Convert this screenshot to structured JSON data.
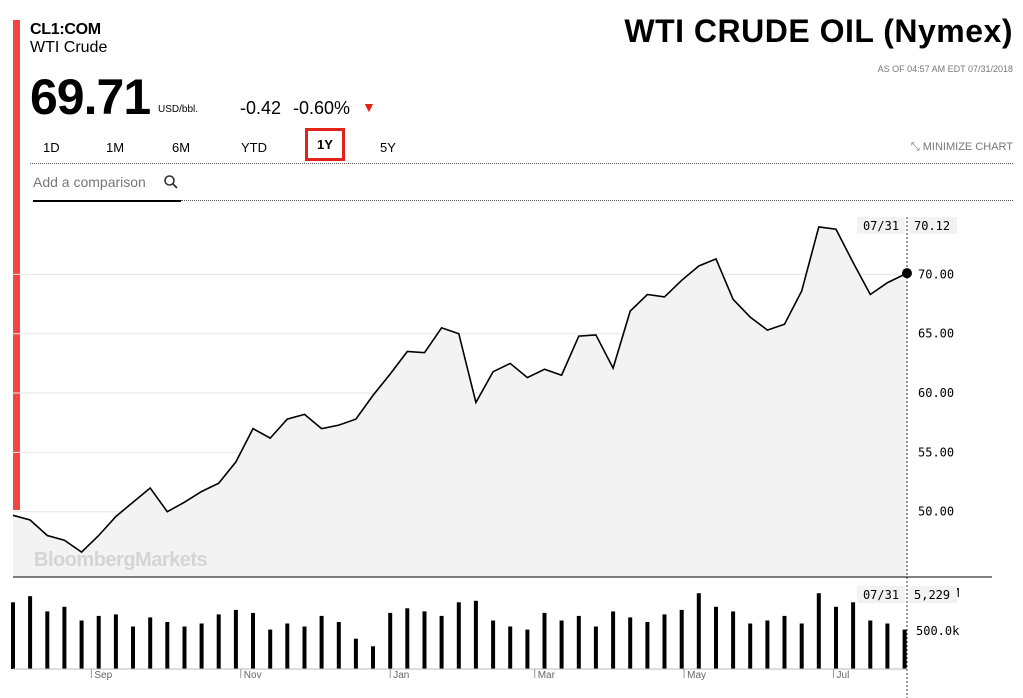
{
  "header": {
    "ticker": "CL1:COM",
    "name": "WTI Crude",
    "headline": "WTI CRUDE OIL (Nymex)",
    "as_of": "AS OF 04:57 AM EDT 07/31/2018",
    "price": "69.71",
    "unit": "USD/bbl.",
    "change": "-0.42",
    "change_pct": "-0.60%",
    "arrow": "▼"
  },
  "ranges": [
    "1D",
    "1M",
    "6M",
    "YTD",
    "1Y",
    "5Y"
  ],
  "active_range": "1Y",
  "minimize_label": "MINIMIZE CHART",
  "compare_placeholder": "Add a comparison",
  "watermark": "BloombergMarkets",
  "colors": {
    "accent": "#f44545",
    "down": "#e2231a",
    "line": "#000000",
    "area": "#f3f3f3",
    "volume": "#000000"
  },
  "chart_data": [
    {
      "type": "area",
      "title": "",
      "y_ticks": [
        "50.00",
        "55.00",
        "60.00",
        "65.00",
        "70.00"
      ],
      "ylim": [
        44.5,
        75
      ],
      "x_ticks": [
        "Sep",
        "Nov",
        "Jan",
        "Mar",
        "May",
        "Jul"
      ],
      "xlim": [
        "2017-07-31",
        "2018-07-31"
      ],
      "crosshair": {
        "date_label": "07/31",
        "value_label": "70.12"
      },
      "series": [
        {
          "x": [
            "2017-07-31",
            "2017-08-07",
            "2017-08-14",
            "2017-08-21",
            "2017-08-28",
            "2017-09-04",
            "2017-09-11",
            "2017-09-18",
            "2017-09-25",
            "2017-10-02",
            "2017-10-09",
            "2017-10-16",
            "2017-10-23",
            "2017-10-30",
            "2017-11-06",
            "2017-11-13",
            "2017-11-20",
            "2017-11-27",
            "2017-12-04",
            "2017-12-11",
            "2017-12-18",
            "2017-12-25",
            "2018-01-01",
            "2018-01-08",
            "2018-01-15",
            "2018-01-22",
            "2018-01-29",
            "2018-02-05",
            "2018-02-12",
            "2018-02-19",
            "2018-02-26",
            "2018-03-05",
            "2018-03-12",
            "2018-03-19",
            "2018-03-26",
            "2018-04-02",
            "2018-04-09",
            "2018-04-16",
            "2018-04-23",
            "2018-04-30",
            "2018-05-07",
            "2018-05-14",
            "2018-05-21",
            "2018-05-28",
            "2018-06-04",
            "2018-06-11",
            "2018-06-18",
            "2018-06-25",
            "2018-07-02",
            "2018-07-09",
            "2018-07-16",
            "2018-07-23",
            "2018-07-31"
          ],
          "values": [
            49.7,
            49.3,
            48.0,
            47.6,
            46.6,
            48.0,
            49.6,
            50.8,
            52.0,
            50.0,
            50.8,
            51.7,
            52.4,
            54.2,
            57.0,
            56.2,
            57.8,
            58.2,
            57.0,
            57.3,
            57.8,
            59.8,
            61.6,
            63.5,
            63.4,
            65.5,
            65.0,
            59.2,
            61.8,
            62.5,
            61.3,
            62.0,
            61.5,
            64.8,
            64.9,
            62.1,
            66.9,
            68.3,
            68.1,
            69.5,
            70.7,
            71.3,
            67.9,
            66.4,
            65.3,
            65.8,
            68.6,
            74.0,
            73.8,
            71.0,
            68.3,
            69.3,
            70.1
          ]
        }
      ]
    },
    {
      "type": "bar",
      "title": "",
      "y_ticks": [
        "500.0k",
        "1.000M"
      ],
      "ylim": [
        0,
        1200000
      ],
      "crosshair": {
        "date_label": "07/31",
        "value_label": "5,229"
      },
      "series": [
        {
          "x": [
            "2017-07-31",
            "2017-08-07",
            "2017-08-14",
            "2017-08-21",
            "2017-08-28",
            "2017-09-04",
            "2017-09-11",
            "2017-09-18",
            "2017-09-25",
            "2017-10-02",
            "2017-10-09",
            "2017-10-16",
            "2017-10-23",
            "2017-10-30",
            "2017-11-06",
            "2017-11-13",
            "2017-11-20",
            "2017-11-27",
            "2017-12-04",
            "2017-12-11",
            "2017-12-18",
            "2017-12-25",
            "2018-01-01",
            "2018-01-08",
            "2018-01-15",
            "2018-01-22",
            "2018-01-29",
            "2018-02-05",
            "2018-02-12",
            "2018-02-19",
            "2018-02-26",
            "2018-03-05",
            "2018-03-12",
            "2018-03-19",
            "2018-03-26",
            "2018-04-02",
            "2018-04-09",
            "2018-04-16",
            "2018-04-23",
            "2018-04-30",
            "2018-05-07",
            "2018-05-14",
            "2018-05-21",
            "2018-05-28",
            "2018-06-04",
            "2018-06-11",
            "2018-06-18",
            "2018-06-25",
            "2018-07-02",
            "2018-07-09",
            "2018-07-16",
            "2018-07-23",
            "2018-07-30"
          ],
          "values": [
            880000,
            960000,
            760000,
            820000,
            640000,
            700000,
            720000,
            560000,
            680000,
            620000,
            560000,
            600000,
            720000,
            780000,
            740000,
            520000,
            600000,
            560000,
            700000,
            620000,
            400000,
            300000,
            740000,
            800000,
            760000,
            700000,
            880000,
            900000,
            640000,
            560000,
            520000,
            740000,
            640000,
            700000,
            560000,
            760000,
            680000,
            620000,
            720000,
            780000,
            1000000,
            820000,
            760000,
            600000,
            640000,
            700000,
            600000,
            1000000,
            820000,
            880000,
            640000,
            600000,
            520000
          ]
        }
      ]
    }
  ]
}
